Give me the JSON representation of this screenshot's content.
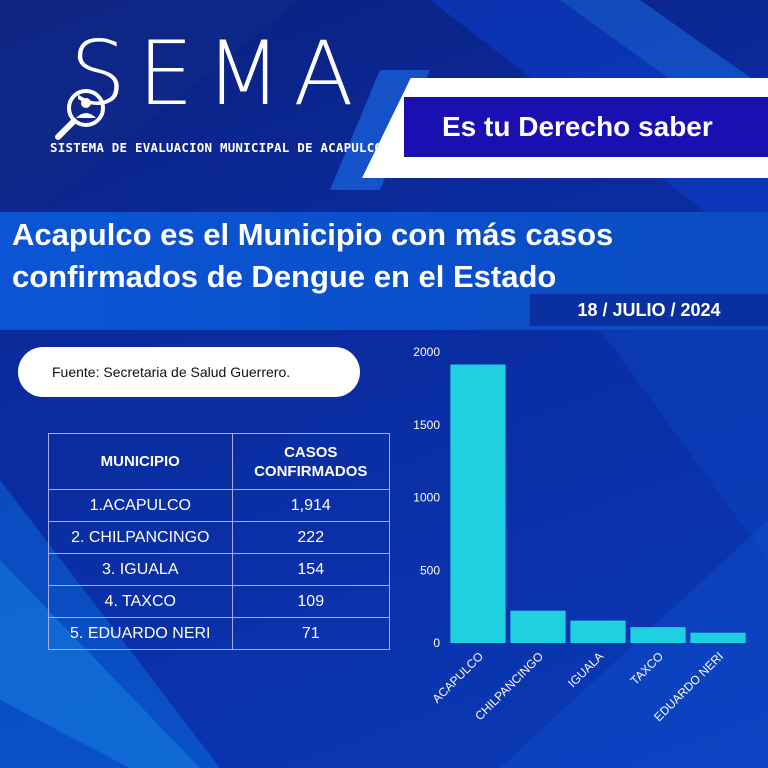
{
  "logo": {
    "name": "SEMA",
    "subtitle": "SISTEMA DE EVALUACION MUNICIPAL DE ACAPULCO"
  },
  "tagline": "Es tu Derecho saber",
  "headline": "Acapulco es el Municipio con más casos confirmados de Dengue en el Estado",
  "date": "18 / JULIO / 2024",
  "source": "Fuente: Secretaria de Salud Guerrero.",
  "table": {
    "headers": [
      "MUNICIPIO",
      "CASOS CONFIRMADOS"
    ],
    "rows": [
      [
        "1.ACAPULCO",
        "1,914"
      ],
      [
        "2. CHILPANCINGO",
        "222"
      ],
      [
        "3. IGUALA",
        "154"
      ],
      [
        "4. TAXCO",
        "109"
      ],
      [
        "5. EDUARDO NERI",
        "71"
      ]
    ]
  },
  "colors": {
    "background": "#0b2a9c",
    "bar": "#1fd0e0",
    "tag": "#1a0fb0",
    "band": "#0b55d4"
  },
  "chart_data": {
    "type": "bar",
    "title": "",
    "xlabel": "",
    "ylabel": "",
    "categories": [
      "ACAPULCO",
      "CHILPANCINGO",
      "IGUALA",
      "TAXCO",
      "EDUARDO NERI"
    ],
    "values": [
      1914,
      222,
      154,
      109,
      71
    ],
    "ylim": [
      0,
      2000
    ],
    "yticks": [
      0,
      500,
      1000,
      1500,
      2000
    ],
    "grid": false
  }
}
